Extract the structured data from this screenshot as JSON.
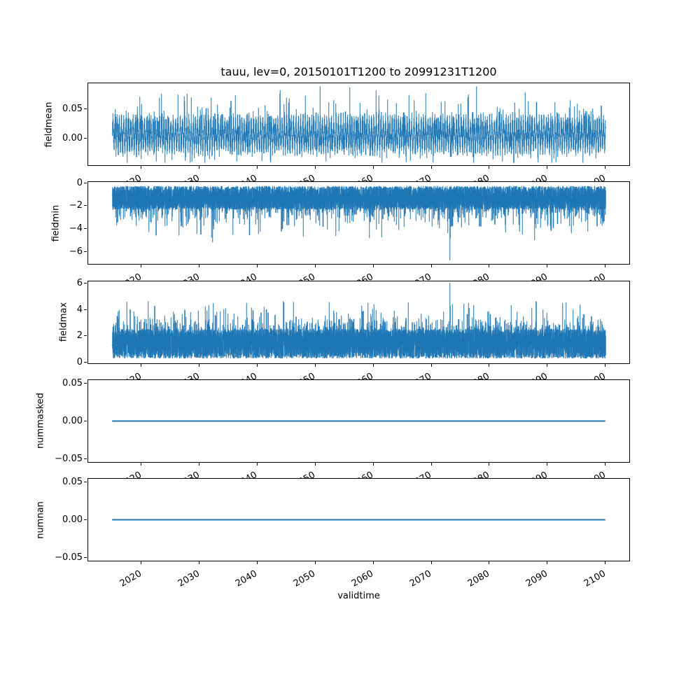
{
  "figure": {
    "background": "#ffffff",
    "line_color": "#1f77b4",
    "axis_color": "#000000",
    "text_color": "#000000"
  },
  "chart_data": {
    "type": "line",
    "title": "tauu, lev=0, 20150101T1200 to 20991231T1200",
    "xlabel": "validtime",
    "x_range": [
      2015.0,
      2100.0
    ],
    "xlim": [
      2010.75,
      2104.25
    ],
    "xticks": [
      2020,
      2030,
      2040,
      2050,
      2060,
      2070,
      2080,
      2090,
      2100
    ],
    "xtick_labels": [
      "2020",
      "2030",
      "2040",
      "2050",
      "2060",
      "2070",
      "2080",
      "2090",
      "2100"
    ],
    "xtick_rotation_deg": 30,
    "grid": false,
    "legend": null,
    "subplots": [
      {
        "ylabel": "fieldmean",
        "ylim": [
          -0.047,
          0.0945
        ],
        "yticks": [
          {
            "v": 0.05,
            "label": "0.05"
          },
          {
            "v": 0.0,
            "label": "0.00"
          }
        ],
        "series": {
          "kind": "seasonal-noise",
          "base": 0.006,
          "amp": 0.02,
          "amp_jitter": 0.012,
          "freq": 2.6,
          "noise": 0.012,
          "up_p": 0.012,
          "up_amp": 0.038,
          "dn_p": 0.02,
          "dn_amp": 0.022,
          "clip": [
            -0.042,
            0.0885
          ]
        },
        "summary": {
          "mean": 0.006,
          "typical_band": [
            -0.03,
            0.04
          ],
          "spike_max": 0.089,
          "spike_min": -0.042
        }
      },
      {
        "ylabel": "fieldmin",
        "ylim": [
          -7.16,
          0.12
        ],
        "yticks": [
          {
            "v": 0,
            "label": "0"
          },
          {
            "v": -2,
            "label": "−2"
          },
          {
            "v": -4,
            "label": "−4"
          },
          {
            "v": -6,
            "label": "−6"
          }
        ],
        "series": {
          "kind": "band-hair",
          "sign": -1,
          "offset": -0.28,
          "band": 2.0,
          "hair_p": 0.18,
          "hair_scale": 0.6,
          "hair_cap": 2.6
        },
        "notable_points": [
          {
            "t": 2026.5,
            "v": -4.6
          },
          {
            "t": 2032.3,
            "v": -5.2
          },
          {
            "t": 2040.2,
            "v": -4.45
          },
          {
            "t": 2047.9,
            "v": -4.7
          },
          {
            "t": 2061.4,
            "v": -4.75
          },
          {
            "t": 2073.2,
            "v": -6.8
          },
          {
            "t": 2087.8,
            "v": -5.0
          },
          {
            "t": 2094.1,
            "v": -4.4
          }
        ],
        "summary": {
          "typical_band": [
            -2.3,
            -0.3
          ],
          "extreme_min": -6.8,
          "extreme_min_year": 2073
        }
      },
      {
        "ylabel": "fieldmax",
        "ylim": [
          -0.11,
          6.21
        ],
        "yticks": [
          {
            "v": 6,
            "label": "6"
          },
          {
            "v": 4,
            "label": "4"
          },
          {
            "v": 2,
            "label": "2"
          },
          {
            "v": 0,
            "label": "0"
          }
        ],
        "series": {
          "kind": "band-hair",
          "sign": 1,
          "offset": 0.3,
          "band": 2.2,
          "hair_p": 0.18,
          "hair_scale": 0.55,
          "hair_cap": 2.2
        },
        "notable_points": [
          {
            "t": 2017.5,
            "v": 4.6
          },
          {
            "t": 2021.2,
            "v": 4.65
          },
          {
            "t": 2032.4,
            "v": 4.5
          },
          {
            "t": 2044.6,
            "v": 4.55
          },
          {
            "t": 2060.1,
            "v": 4.4
          },
          {
            "t": 2073.2,
            "v": 6.05
          },
          {
            "t": 2075.6,
            "v": 4.45
          },
          {
            "t": 2093.2,
            "v": 4.55
          }
        ],
        "summary": {
          "typical_band": [
            0.3,
            2.5
          ],
          "extreme_max": 6.05,
          "extreme_max_year": 2073
        }
      },
      {
        "ylabel": "nummasked",
        "ylim": [
          -0.055,
          0.055
        ],
        "yticks": [
          {
            "v": 0.05,
            "label": "0.05"
          },
          {
            "v": 0.0,
            "label": "0.00"
          },
          {
            "v": -0.05,
            "label": "−0.05"
          }
        ],
        "series": {
          "kind": "flat",
          "value": 0
        },
        "summary": {
          "constant_value": 0
        }
      },
      {
        "ylabel": "numnan",
        "ylim": [
          -0.055,
          0.055
        ],
        "yticks": [
          {
            "v": 0.05,
            "label": "0.05"
          },
          {
            "v": 0.0,
            "label": "0.00"
          },
          {
            "v": -0.05,
            "label": "−0.05"
          }
        ],
        "series": {
          "kind": "flat",
          "value": 0
        },
        "summary": {
          "constant_value": 0
        }
      }
    ]
  }
}
